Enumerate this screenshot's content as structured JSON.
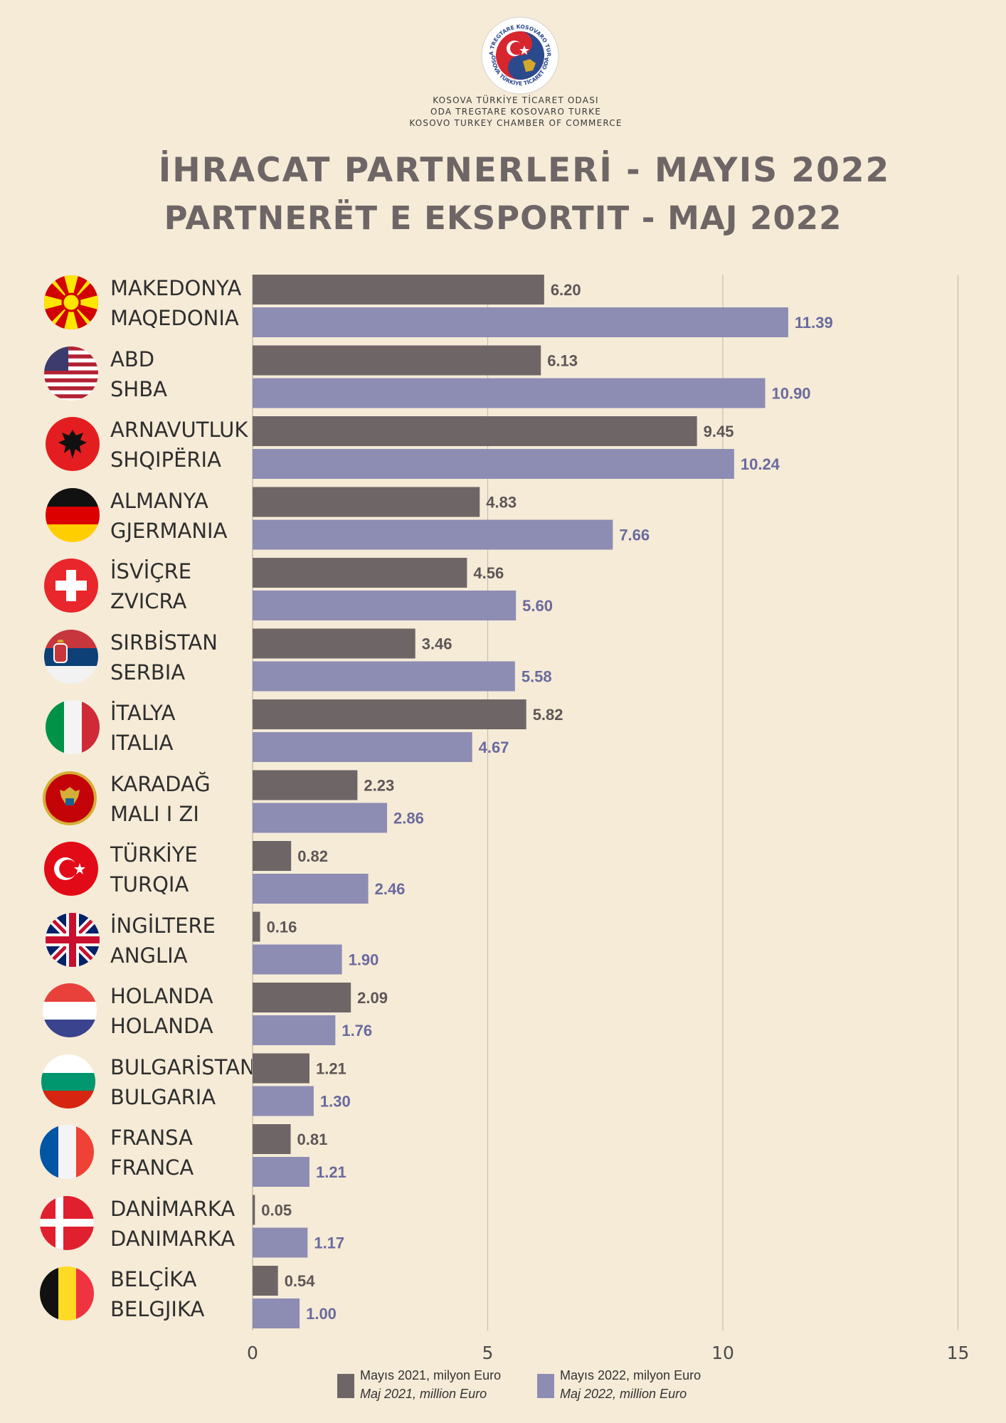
{
  "header": {
    "logo_text": [
      "ODA TREGTARE KOSOVARO TURKE",
      "KOSOVA TÜRKİYE TİCARET ODASI"
    ],
    "org_lines": [
      "KOSOVA TÜRKİYE TİCARET ODASI",
      "ODA TREGTARE KOSOVARO TURKE",
      "KOSOVO TURKEY CHAMBER OF COMMERCE"
    ],
    "title_tr": "İHRACAT PARTNERLERİ - MAYIS 2022",
    "title_sq": "PARTNERËT E EKSPORTIT - MAJ 2022"
  },
  "colors": {
    "background": "#f5ebd7",
    "series_2021": "#6e6666",
    "series_2022": "#8d8cb3",
    "label_2022": "#6a6a9e",
    "grid": "#c8bfb4"
  },
  "chart_data": {
    "type": "bar",
    "orientation": "horizontal",
    "categories": [
      {
        "tr": "MAKEDONYA",
        "sq": "MAQEDONIA",
        "flag": "north-macedonia"
      },
      {
        "tr": "ABD",
        "sq": "SHBA",
        "flag": "usa"
      },
      {
        "tr": "ARNAVUTLUK",
        "sq": "SHQIPËRIA",
        "flag": "albania"
      },
      {
        "tr": "ALMANYA",
        "sq": "GJERMANIA",
        "flag": "germany"
      },
      {
        "tr": "İSVİÇRE",
        "sq": "ZVICRA",
        "flag": "switzerland"
      },
      {
        "tr": "SIRBİSTAN",
        "sq": "SERBIA",
        "flag": "serbia"
      },
      {
        "tr": "İTALYA",
        "sq": "ITALIA",
        "flag": "italy"
      },
      {
        "tr": "KARADAĞ",
        "sq": "MALI I ZI",
        "flag": "montenegro"
      },
      {
        "tr": "TÜRKİYE",
        "sq": "TURQIA",
        "flag": "turkey"
      },
      {
        "tr": "İNGİLTERE",
        "sq": "ANGLIA",
        "flag": "uk"
      },
      {
        "tr": "HOLANDA",
        "sq": "HOLANDA",
        "flag": "netherlands"
      },
      {
        "tr": "BULGARİSTAN",
        "sq": "BULGARIA",
        "flag": "bulgaria"
      },
      {
        "tr": "FRANSA",
        "sq": "FRANCA",
        "flag": "france"
      },
      {
        "tr": "DANİMARKA",
        "sq": "DANIMARKA",
        "flag": "denmark"
      },
      {
        "tr": "BELÇİKA",
        "sq": "BELGJIKA",
        "flag": "belgium"
      }
    ],
    "series": [
      {
        "name": "Mayıs 2021, milyon Euro",
        "name_sq": "Maj 2021, million Euro",
        "values": [
          6.2,
          6.13,
          9.45,
          4.83,
          4.56,
          3.46,
          5.82,
          2.23,
          0.82,
          0.16,
          2.09,
          1.21,
          0.81,
          0.05,
          0.54
        ],
        "labels": [
          "6.20",
          "6.13",
          "9.45",
          "4.83",
          "4.56",
          "3.46",
          "5.82",
          "2.23",
          "0.82",
          "0.16",
          "2.09",
          "1.21",
          "0.81",
          "0.05",
          "0.54"
        ]
      },
      {
        "name": "Mayıs 2022, milyon Euro",
        "name_sq": "Maj 2022, million Euro",
        "values": [
          11.39,
          10.9,
          10.24,
          7.66,
          5.6,
          5.58,
          4.67,
          2.86,
          2.46,
          1.9,
          1.76,
          1.3,
          1.21,
          1.17,
          1.0
        ],
        "labels": [
          "11.39",
          "10.90",
          "10.24",
          "7.66",
          "5.60",
          "5.58",
          "4.67",
          "2.86",
          "2.46",
          "1.90",
          "1.76",
          "1.30",
          "1.21",
          "1.17",
          "1.00"
        ]
      }
    ],
    "xlim": [
      0,
      15
    ],
    "x_ticks": [
      "0",
      "5",
      "10",
      "15"
    ],
    "grid": true,
    "legend_position": "bottom"
  }
}
